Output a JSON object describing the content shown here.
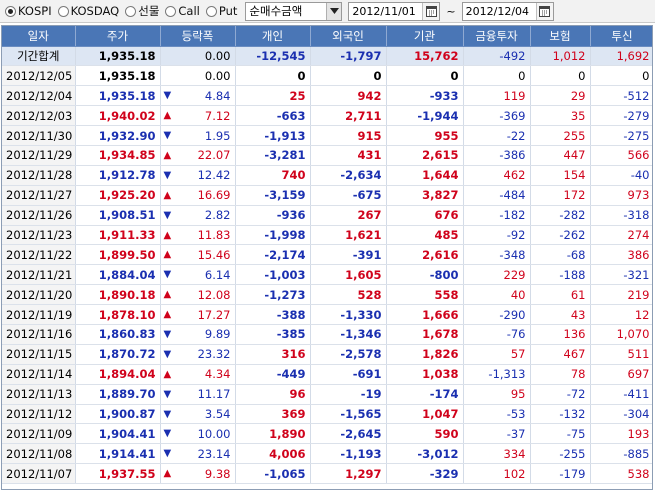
{
  "toolbar": {
    "radios": [
      {
        "label": "KOSPI",
        "selected": true
      },
      {
        "label": "KOSDAQ",
        "selected": false
      },
      {
        "label": "선물",
        "selected": false
      },
      {
        "label": "Call",
        "selected": false
      },
      {
        "label": "Put",
        "selected": false
      }
    ],
    "select_value": "순매수금액",
    "date_from": "2012/11/01",
    "date_sep": "~",
    "date_to": "2012/12/04"
  },
  "columns": [
    "일자",
    "주가",
    "등락폭",
    "개인",
    "외국인",
    "기관",
    "금융투자",
    "보험",
    "투신"
  ],
  "colors": {
    "up": "#d0021b",
    "down": "#1a2fb0",
    "header": "#4a76b6"
  },
  "rows": [
    {
      "date": "기간합계",
      "price": "1,935.18",
      "dir": "none",
      "chg": "0.00",
      "indiv": "-12,545",
      "foreign": "-1,797",
      "inst": "15,762",
      "fin": "-492",
      "ins": "1,012",
      "trust": "1,692"
    },
    {
      "date": "2012/12/05",
      "price": "1,935.18",
      "dir": "none",
      "chg": "0.00",
      "indiv": "0",
      "foreign": "0",
      "inst": "0",
      "fin": "0",
      "ins": "0",
      "trust": "0"
    },
    {
      "date": "2012/12/04",
      "price": "1,935.18",
      "dir": "down",
      "chg": "4.84",
      "indiv": "25",
      "foreign": "942",
      "inst": "-933",
      "fin": "119",
      "ins": "29",
      "trust": "-512"
    },
    {
      "date": "2012/12/03",
      "price": "1,940.02",
      "dir": "up",
      "chg": "7.12",
      "indiv": "-663",
      "foreign": "2,711",
      "inst": "-1,944",
      "fin": "-369",
      "ins": "35",
      "trust": "-279"
    },
    {
      "date": "2012/11/30",
      "price": "1,932.90",
      "dir": "down",
      "chg": "1.95",
      "indiv": "-1,913",
      "foreign": "915",
      "inst": "955",
      "fin": "-22",
      "ins": "255",
      "trust": "-275"
    },
    {
      "date": "2012/11/29",
      "price": "1,934.85",
      "dir": "up",
      "chg": "22.07",
      "indiv": "-3,281",
      "foreign": "431",
      "inst": "2,615",
      "fin": "-386",
      "ins": "447",
      "trust": "566"
    },
    {
      "date": "2012/11/28",
      "price": "1,912.78",
      "dir": "down",
      "chg": "12.42",
      "indiv": "740",
      "foreign": "-2,634",
      "inst": "1,644",
      "fin": "462",
      "ins": "154",
      "trust": "-40"
    },
    {
      "date": "2012/11/27",
      "price": "1,925.20",
      "dir": "up",
      "chg": "16.69",
      "indiv": "-3,159",
      "foreign": "-675",
      "inst": "3,827",
      "fin": "-484",
      "ins": "172",
      "trust": "973"
    },
    {
      "date": "2012/11/26",
      "price": "1,908.51",
      "dir": "down",
      "chg": "2.82",
      "indiv": "-936",
      "foreign": "267",
      "inst": "676",
      "fin": "-182",
      "ins": "-282",
      "trust": "-318"
    },
    {
      "date": "2012/11/23",
      "price": "1,911.33",
      "dir": "up",
      "chg": "11.83",
      "indiv": "-1,998",
      "foreign": "1,621",
      "inst": "485",
      "fin": "-92",
      "ins": "-262",
      "trust": "274"
    },
    {
      "date": "2012/11/22",
      "price": "1,899.50",
      "dir": "up",
      "chg": "15.46",
      "indiv": "-2,174",
      "foreign": "-391",
      "inst": "2,616",
      "fin": "-348",
      "ins": "-68",
      "trust": "386"
    },
    {
      "date": "2012/11/21",
      "price": "1,884.04",
      "dir": "down",
      "chg": "6.14",
      "indiv": "-1,003",
      "foreign": "1,605",
      "inst": "-800",
      "fin": "229",
      "ins": "-188",
      "trust": "-321"
    },
    {
      "date": "2012/11/20",
      "price": "1,890.18",
      "dir": "up",
      "chg": "12.08",
      "indiv": "-1,273",
      "foreign": "528",
      "inst": "558",
      "fin": "40",
      "ins": "61",
      "trust": "219"
    },
    {
      "date": "2012/11/19",
      "price": "1,878.10",
      "dir": "up",
      "chg": "17.27",
      "indiv": "-388",
      "foreign": "-1,330",
      "inst": "1,666",
      "fin": "-290",
      "ins": "43",
      "trust": "12"
    },
    {
      "date": "2012/11/16",
      "price": "1,860.83",
      "dir": "down",
      "chg": "9.89",
      "indiv": "-385",
      "foreign": "-1,346",
      "inst": "1,678",
      "fin": "-76",
      "ins": "136",
      "trust": "1,070"
    },
    {
      "date": "2012/11/15",
      "price": "1,870.72",
      "dir": "down",
      "chg": "23.32",
      "indiv": "316",
      "foreign": "-2,578",
      "inst": "1,826",
      "fin": "57",
      "ins": "467",
      "trust": "511"
    },
    {
      "date": "2012/11/14",
      "price": "1,894.04",
      "dir": "up",
      "chg": "4.34",
      "indiv": "-449",
      "foreign": "-691",
      "inst": "1,038",
      "fin": "-1,313",
      "ins": "78",
      "trust": "697"
    },
    {
      "date": "2012/11/13",
      "price": "1,889.70",
      "dir": "down",
      "chg": "11.17",
      "indiv": "96",
      "foreign": "-19",
      "inst": "-174",
      "fin": "95",
      "ins": "-72",
      "trust": "-411"
    },
    {
      "date": "2012/11/12",
      "price": "1,900.87",
      "dir": "down",
      "chg": "3.54",
      "indiv": "369",
      "foreign": "-1,565",
      "inst": "1,047",
      "fin": "-53",
      "ins": "-132",
      "trust": "-304"
    },
    {
      "date": "2012/11/09",
      "price": "1,904.41",
      "dir": "down",
      "chg": "10.00",
      "indiv": "1,890",
      "foreign": "-2,645",
      "inst": "590",
      "fin": "-37",
      "ins": "-75",
      "trust": "193"
    },
    {
      "date": "2012/11/08",
      "price": "1,914.41",
      "dir": "down",
      "chg": "23.14",
      "indiv": "4,006",
      "foreign": "-1,193",
      "inst": "-3,012",
      "fin": "334",
      "ins": "-255",
      "trust": "-885"
    },
    {
      "date": "2012/11/07",
      "price": "1,937.55",
      "dir": "up",
      "chg": "9.38",
      "indiv": "-1,065",
      "foreign": "1,297",
      "inst": "-329",
      "fin": "102",
      "ins": "-179",
      "trust": "538"
    }
  ]
}
